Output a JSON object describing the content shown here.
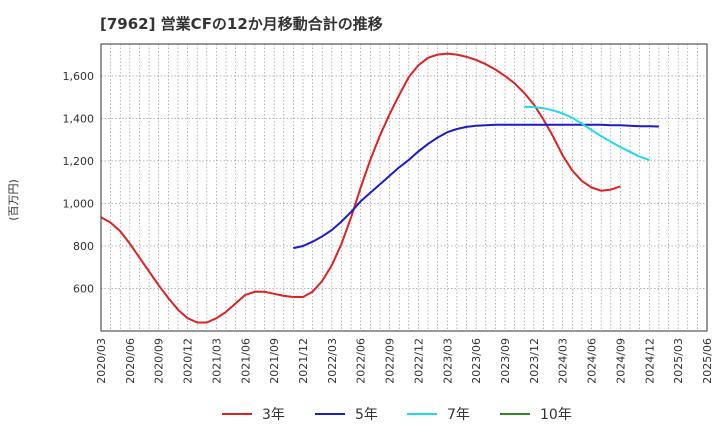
{
  "chart_data": {
    "type": "line",
    "title": "[7962]  営業CFの12か月移動合計の推移",
    "ylabel": "(百万円)",
    "xlabel": "",
    "ylim": [
      400,
      1750
    ],
    "yticks": [
      600,
      800,
      1000,
      1200,
      1400,
      1600
    ],
    "ytick_labels": [
      "600",
      "800",
      "1,000",
      "1,200",
      "1,400",
      "1,600"
    ],
    "xticks": [
      "2020/03",
      "2020/06",
      "2020/09",
      "2020/12",
      "2021/03",
      "2021/06",
      "2021/09",
      "2021/12",
      "2022/03",
      "2022/06",
      "2022/09",
      "2022/12",
      "2023/03",
      "2023/06",
      "2023/09",
      "2023/12",
      "2024/03",
      "2024/06",
      "2024/09",
      "2024/12",
      "2025/03",
      "2025/06"
    ],
    "grid": true,
    "legend_position": "bottom",
    "series": [
      {
        "name": "3年",
        "color": "#dd2222",
        "start": "2020/03",
        "values": [
          935,
          910,
          870,
          810,
          745,
          680,
          615,
          555,
          500,
          460,
          440,
          440,
          460,
          490,
          530,
          570,
          585,
          585,
          575,
          565,
          560,
          560,
          585,
          635,
          710,
          810,
          935,
          1075,
          1205,
          1320,
          1420,
          1510,
          1595,
          1650,
          1685,
          1700,
          1705,
          1700,
          1690,
          1675,
          1655,
          1630,
          1600,
          1565,
          1520,
          1465,
          1395,
          1315,
          1225,
          1155,
          1105,
          1075,
          1060,
          1065,
          1080
        ]
      },
      {
        "name": "5年",
        "color": "#1c1ccc",
        "start": "2021/11",
        "values": [
          790,
          800,
          820,
          845,
          875,
          915,
          960,
          1010,
          1050,
          1090,
          1130,
          1170,
          1205,
          1245,
          1280,
          1310,
          1335,
          1350,
          1360,
          1365,
          1368,
          1370,
          1370,
          1370,
          1370,
          1370,
          1370,
          1370,
          1370,
          1370,
          1370,
          1370,
          1370,
          1368,
          1368,
          1365,
          1363,
          1363,
          1362
        ]
      },
      {
        "name": "7年",
        "color": "#22d8ee",
        "start": "2023/11",
        "values": [
          1455,
          1453,
          1448,
          1438,
          1423,
          1403,
          1375,
          1345,
          1317,
          1290,
          1265,
          1243,
          1220,
          1205
        ]
      },
      {
        "name": "10年",
        "color": "#2a8a2a",
        "start": "2023/11",
        "values": []
      }
    ]
  }
}
